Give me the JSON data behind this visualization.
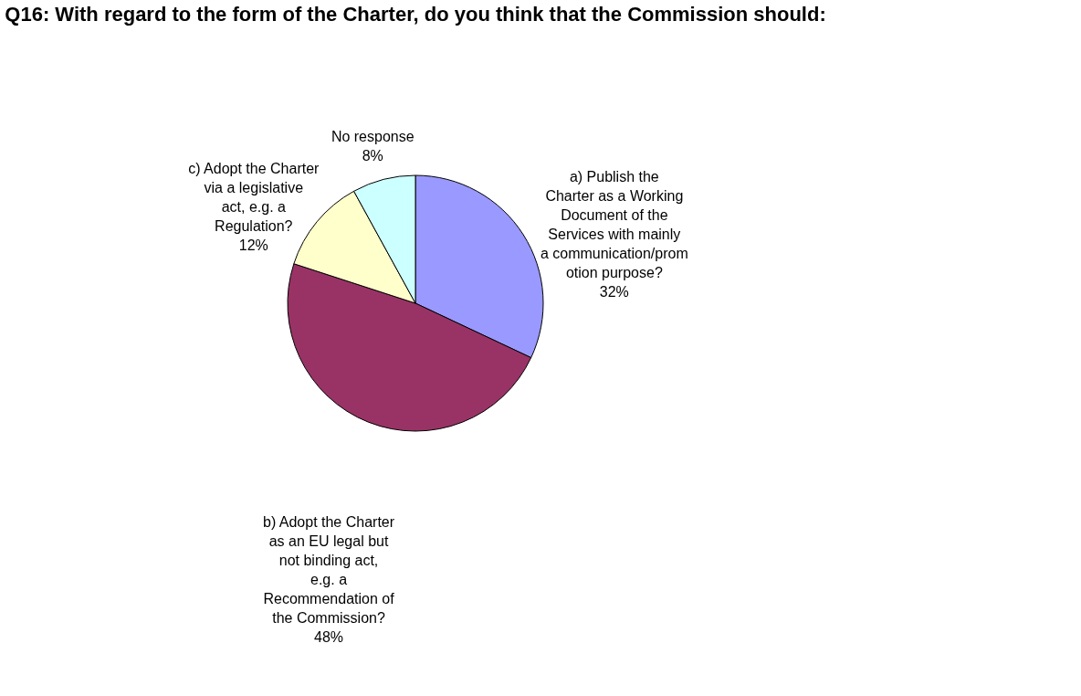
{
  "chart_data": {
    "type": "pie",
    "title": "Q16: With regard to the form of the Charter, do you think that the Commission should:",
    "categories": [
      "a) Publish the Charter as a Working Document of the Services with mainly a communication/promotion purpose?",
      "b) Adopt the Charter as an EU legal but not binding act, e.g. a Recommendation of the Commission?",
      "c) Adopt the Charter via a legislative act, e.g. a Regulation?",
      "No response"
    ],
    "values": [
      32,
      48,
      12,
      8
    ],
    "colors": [
      "#9999ff",
      "#993366",
      "#ffffcc",
      "#ccffff"
    ],
    "value_labels": [
      "32%",
      "48%",
      "12%",
      "8%"
    ],
    "legend": false
  }
}
